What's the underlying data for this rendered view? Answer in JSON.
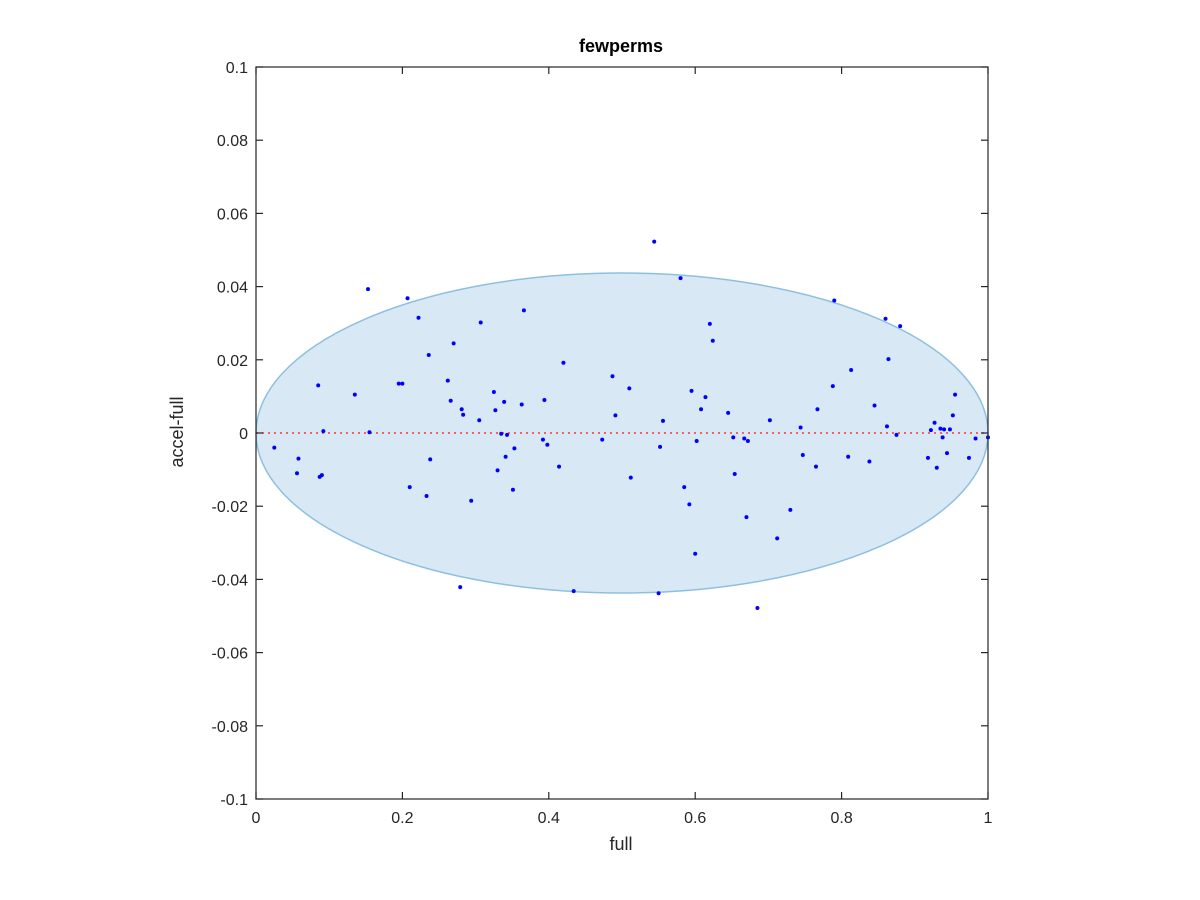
{
  "chart_data": {
    "type": "scatter",
    "title": "fewperms",
    "xlabel": "full",
    "ylabel": "accel-full",
    "xlim": [
      0,
      1
    ],
    "ylim": [
      -0.1,
      0.1
    ],
    "xticks": [
      0,
      0.2,
      0.4,
      0.6,
      0.8,
      1
    ],
    "xtick_labels": [
      "0",
      "0.2",
      "0.4",
      "0.6",
      "0.8",
      "1"
    ],
    "yticks": [
      -0.1,
      -0.08,
      -0.06,
      -0.04,
      -0.02,
      0,
      0.02,
      0.04,
      0.06,
      0.08,
      0.1
    ],
    "ytick_labels": [
      "-0.1",
      "-0.08",
      "-0.06",
      "-0.04",
      "-0.02",
      "0",
      "0.02",
      "0.04",
      "0.06",
      "0.08",
      "0.1"
    ],
    "grid": false,
    "colors": {
      "points": "#0000ff",
      "zero_line": "#ff3333",
      "ellipse_fill": "#d9e8f5",
      "ellipse_stroke": "#8dc0e0",
      "axes": "#262626"
    },
    "ellipse": {
      "center": [
        0.5,
        0
      ],
      "x_radius": 0.5,
      "y_radius": 0.0437
    },
    "reference_line": {
      "y": 0,
      "style": "dotted"
    },
    "points": [
      [
        0.025,
        -0.004
      ],
      [
        0.056,
        -0.011
      ],
      [
        0.058,
        -0.007
      ],
      [
        0.085,
        0.013
      ],
      [
        0.087,
        -0.012
      ],
      [
        0.09,
        -0.0115
      ],
      [
        0.092,
        0.0005
      ],
      [
        0.135,
        0.0105
      ],
      [
        0.153,
        0.0393
      ],
      [
        0.155,
        0.0002
      ],
      [
        0.195,
        0.0135
      ],
      [
        0.2,
        0.0135
      ],
      [
        0.207,
        0.0368
      ],
      [
        0.21,
        -0.0148
      ],
      [
        0.222,
        0.0315
      ],
      [
        0.233,
        -0.0172
      ],
      [
        0.236,
        0.0213
      ],
      [
        0.238,
        -0.0072
      ],
      [
        0.262,
        0.0143
      ],
      [
        0.266,
        0.0088
      ],
      [
        0.27,
        0.0245
      ],
      [
        0.279,
        -0.0421
      ],
      [
        0.281,
        0.0065
      ],
      [
        0.283,
        0.005
      ],
      [
        0.294,
        -0.0185
      ],
      [
        0.305,
        0.0035
      ],
      [
        0.307,
        0.0302
      ],
      [
        0.325,
        0.0112
      ],
      [
        0.327,
        0.0062
      ],
      [
        0.33,
        -0.0102
      ],
      [
        0.335,
        -0.0002
      ],
      [
        0.339,
        0.0085
      ],
      [
        0.341,
        -0.0065
      ],
      [
        0.343,
        -0.0005
      ],
      [
        0.351,
        -0.0155
      ],
      [
        0.353,
        -0.0042
      ],
      [
        0.363,
        0.0078
      ],
      [
        0.366,
        0.0335
      ],
      [
        0.392,
        -0.0018
      ],
      [
        0.394,
        0.009
      ],
      [
        0.398,
        -0.0032
      ],
      [
        0.414,
        -0.0092
      ],
      [
        0.42,
        0.0192
      ],
      [
        0.434,
        -0.0432
      ],
      [
        0.473,
        -0.0018
      ],
      [
        0.487,
        0.0155
      ],
      [
        0.491,
        0.0048
      ],
      [
        0.51,
        0.0122
      ],
      [
        0.512,
        -0.0122
      ],
      [
        0.544,
        0.0523
      ],
      [
        0.55,
        -0.0438
      ],
      [
        0.552,
        -0.0038
      ],
      [
        0.556,
        0.0033
      ],
      [
        0.58,
        0.0423
      ],
      [
        0.585,
        -0.0148
      ],
      [
        0.592,
        -0.0195
      ],
      [
        0.595,
        0.0115
      ],
      [
        0.6,
        -0.033
      ],
      [
        0.602,
        -0.0022
      ],
      [
        0.608,
        0.0065
      ],
      [
        0.614,
        0.0098
      ],
      [
        0.62,
        0.0298
      ],
      [
        0.624,
        0.0252
      ],
      [
        0.645,
        0.0055
      ],
      [
        0.652,
        -0.0012
      ],
      [
        0.654,
        -0.0112
      ],
      [
        0.667,
        -0.0015
      ],
      [
        0.67,
        -0.023
      ],
      [
        0.672,
        -0.0022
      ],
      [
        0.685,
        -0.0478
      ],
      [
        0.702,
        0.0035
      ],
      [
        0.712,
        -0.0288
      ],
      [
        0.73,
        -0.021
      ],
      [
        0.744,
        0.0015
      ],
      [
        0.747,
        -0.006
      ],
      [
        0.765,
        -0.0092
      ],
      [
        0.767,
        0.0065
      ],
      [
        0.788,
        0.0128
      ],
      [
        0.79,
        0.0362
      ],
      [
        0.809,
        -0.0065
      ],
      [
        0.813,
        0.0172
      ],
      [
        0.838,
        -0.0078
      ],
      [
        0.845,
        0.0075
      ],
      [
        0.86,
        0.0312
      ],
      [
        0.862,
        0.0018
      ],
      [
        0.864,
        0.0202
      ],
      [
        0.875,
        -0.0005
      ],
      [
        0.88,
        0.0292
      ],
      [
        0.918,
        -0.0068
      ],
      [
        0.922,
        0.0008
      ],
      [
        0.927,
        0.0028
      ],
      [
        0.93,
        -0.0095
      ],
      [
        0.935,
        0.0012
      ],
      [
        0.938,
        -0.0012
      ],
      [
        0.94,
        0.001
      ],
      [
        0.944,
        -0.0055
      ],
      [
        0.948,
        0.001
      ],
      [
        0.952,
        0.0048
      ],
      [
        0.955,
        0.0105
      ],
      [
        0.974,
        -0.0068
      ],
      [
        0.983,
        -0.0015
      ],
      [
        1.0,
        -0.0012
      ]
    ]
  }
}
